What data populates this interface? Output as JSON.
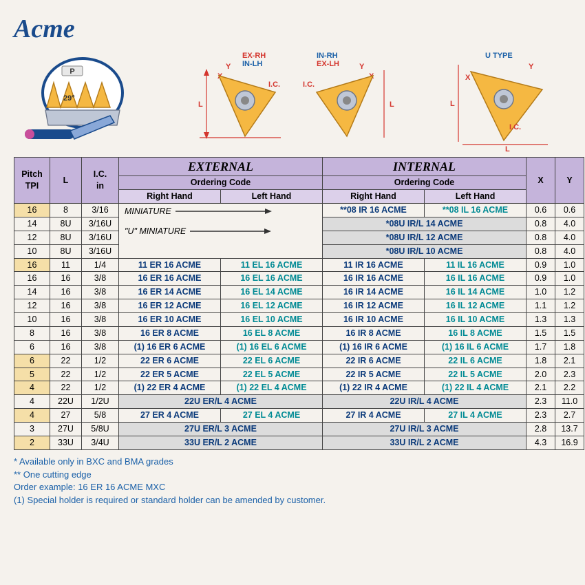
{
  "title": "Acme",
  "diagram_labels": {
    "p": "P",
    "angle": "29°",
    "ex_rh": "EX-RH",
    "in_lh": "IN-LH",
    "in_rh": "IN-RH",
    "ex_lh": "EX-LH",
    "u_type": "U  TYPE",
    "ic": "I.C.",
    "x": "X",
    "y": "Y",
    "l": "L"
  },
  "headers": {
    "pitch": "Pitch",
    "tpi": "TPI",
    "l": "L",
    "ic": "I.C.",
    "in": "in",
    "external": "EXTERNAL",
    "internal": "INTERNAL",
    "ordering_code": "Ordering Code",
    "rh": "Right Hand",
    "lh": "Left Hand",
    "x": "X",
    "y": "Y",
    "miniature": "MINIATURE",
    "u_miniature": "\"U\" MINIATURE"
  },
  "colors": {
    "title": "#1a4b8c",
    "header1": "#c5b4db",
    "header2": "#dcd0ea",
    "tan": "#f5dfa8",
    "gray": "#dcdcdc",
    "darkblue_text": "#0b3a7a",
    "teal_text": "#008a94",
    "footnote": "#1a60a8",
    "body_bg": "#f5f2ed",
    "insert_fill": "#f5b842",
    "steel_fill": "#bfc7d6",
    "dim_red": "#d4362e"
  },
  "rows": [
    {
      "pitch": "16",
      "l": "8",
      "ic": "3/16",
      "ext_span": "mini",
      "int_rh": "**08 IR 16  ACME",
      "int_lh": "**08 IL 16 ACME",
      "x": "0.6",
      "y": "0.6",
      "tan": true
    },
    {
      "pitch": "14",
      "l": "8U",
      "ic": "3/16U",
      "ext_span": "umini",
      "int_span": "*08U IR/L 14 ACME",
      "x": "0.8",
      "y": "4.0",
      "tan": false,
      "gray": true
    },
    {
      "pitch": "12",
      "l": "8U",
      "ic": "3/16U",
      "ext_span": "",
      "int_span": "*08U IR/L 12 ACME",
      "x": "0.8",
      "y": "4.0",
      "tan": false,
      "gray": true
    },
    {
      "pitch": "10",
      "l": "8U",
      "ic": "3/16U",
      "ext_span": "",
      "int_span": "*08U IR/L 10 ACME",
      "x": "0.8",
      "y": "4.0",
      "tan": false,
      "gray": true
    },
    {
      "pitch": "16",
      "l": "11",
      "ic": "1/4",
      "ext_rh": "11 ER 16  ACME",
      "ext_lh": "11 EL 16  ACME",
      "int_rh": "11 IR 16  ACME",
      "int_lh": "11 IL 16  ACME",
      "x": "0.9",
      "y": "1.0",
      "tan": true
    },
    {
      "pitch": "16",
      "l": "16",
      "ic": "3/8",
      "ext_rh": "16 ER 16  ACME",
      "ext_lh": "16 EL 16  ACME",
      "int_rh": "16 IR 16  ACME",
      "int_lh": "16 IL 16  ACME",
      "x": "0.9",
      "y": "1.0",
      "tan": false
    },
    {
      "pitch": "14",
      "l": "16",
      "ic": "3/8",
      "ext_rh": "16 ER 14  ACME",
      "ext_lh": "16 EL 14  ACME",
      "int_rh": "16 IR 14  ACME",
      "int_lh": "16 IL 14  ACME",
      "x": "1.0",
      "y": "1.2",
      "tan": false
    },
    {
      "pitch": "12",
      "l": "16",
      "ic": "3/8",
      "ext_rh": "16 ER 12  ACME",
      "ext_lh": "16 EL 12  ACME",
      "int_rh": "16 IR 12  ACME",
      "int_lh": "16 IL 12  ACME",
      "x": "1.1",
      "y": "1.2",
      "tan": false
    },
    {
      "pitch": "10",
      "l": "16",
      "ic": "3/8",
      "ext_rh": "16 ER 10  ACME",
      "ext_lh": "16 EL 10  ACME",
      "int_rh": "16 IR 10  ACME",
      "int_lh": "16 IL 10  ACME",
      "x": "1.3",
      "y": "1.3",
      "tan": false
    },
    {
      "pitch": "8",
      "l": "16",
      "ic": "3/8",
      "ext_rh": "16 ER  8  ACME",
      "ext_lh": "16 EL  8  ACME",
      "int_rh": "16 IR  8  ACME",
      "int_lh": "16 IL  8  ACME",
      "x": "1.5",
      "y": "1.5",
      "tan": false
    },
    {
      "pitch": "6",
      "l": "16",
      "ic": "3/8",
      "ext_rh": "(1) 16 ER  6  ACME",
      "ext_lh": "(1) 16 EL  6  ACME",
      "int_rh": "(1) 16 IR  6  ACME",
      "int_lh": "(1) 16 IL  6  ACME",
      "x": "1.7",
      "y": "1.8",
      "tan": false
    },
    {
      "pitch": "6",
      "l": "22",
      "ic": "1/2",
      "ext_rh": "22 ER  6  ACME",
      "ext_lh": "22 EL  6  ACME",
      "int_rh": "22 IR  6  ACME",
      "int_lh": "22 IL  6  ACME",
      "x": "1.8",
      "y": "2.1",
      "tan": true
    },
    {
      "pitch": "5",
      "l": "22",
      "ic": "1/2",
      "ext_rh": "22 ER  5  ACME",
      "ext_lh": "22 EL  5  ACME",
      "int_rh": "22 IR  5  ACME",
      "int_lh": "22 IL  5  ACME",
      "x": "2.0",
      "y": "2.3",
      "tan": true
    },
    {
      "pitch": "4",
      "l": "22",
      "ic": "1/2",
      "ext_rh": "(1) 22 ER  4  ACME",
      "ext_lh": "(1) 22 EL  4  ACME",
      "int_rh": "(1) 22 IR  4  ACME",
      "int_lh": "(1) 22 IL  4  ACME",
      "x": "2.1",
      "y": "2.2",
      "tan": true
    },
    {
      "pitch": "4",
      "l": "22U",
      "ic": "1/2U",
      "ext_span_code": "22U ER/L 4 ACME",
      "int_span_code": "22U IR/L 4 ACME",
      "x": "2.3",
      "y": "11.0",
      "tan": false,
      "gray": true
    },
    {
      "pitch": "4",
      "l": "27",
      "ic": "5/8",
      "ext_rh": "27 ER  4  ACME",
      "ext_lh": "27 EL  4  ACME",
      "int_rh": "27 IR  4  ACME",
      "int_lh": "27 IL  4  ACME",
      "x": "2.3",
      "y": "2.7",
      "tan": true
    },
    {
      "pitch": "3",
      "l": "27U",
      "ic": "5/8U",
      "ext_span_code": "27U ER/L 3 ACME",
      "int_span_code": "27U IR/L 3 ACME",
      "x": "2.8",
      "y": "13.7",
      "tan": false,
      "gray": true
    },
    {
      "pitch": "2",
      "l": "33U",
      "ic": "3/4U",
      "ext_span_code": "33U ER/L 2 ACME",
      "int_span_code": "33U IR/L 2 ACME",
      "x": "4.3",
      "y": "16.9",
      "tan": true,
      "gray": true
    }
  ],
  "footnotes": [
    "* Available only in BXC and BMA grades",
    "** One cutting edge",
    "Order example: 16 ER 16 ACME MXC",
    "(1) Special holder is required or standard holder can be amended by customer."
  ]
}
